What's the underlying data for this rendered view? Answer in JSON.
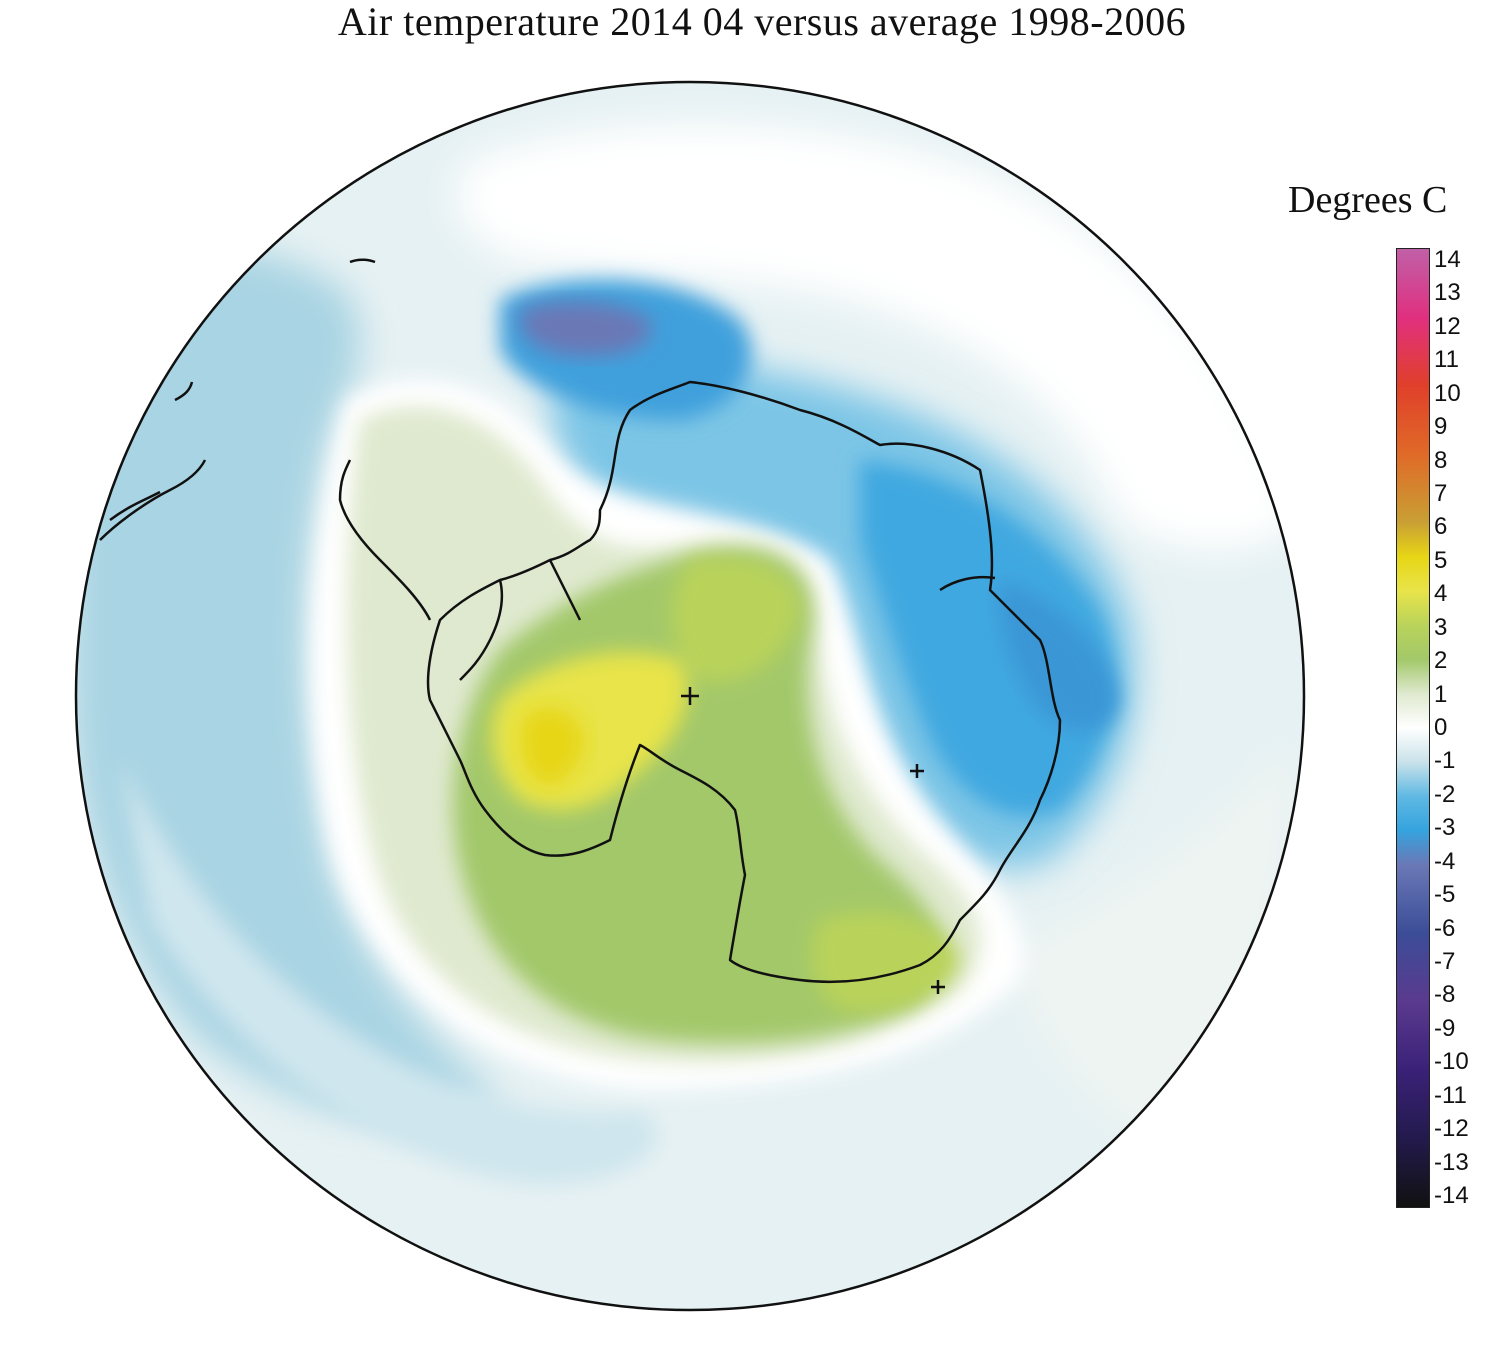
{
  "title": "Air temperature 2014 04 versus average 1998-2006",
  "legend": {
    "title": "Degrees C",
    "min": -14,
    "max": 14,
    "ticks": [
      "14",
      "13",
      "12",
      "11",
      "10",
      "9",
      "8",
      "7",
      "6",
      "5",
      "4",
      "3",
      "2",
      "1",
      "0",
      "-1",
      "-2",
      "-3",
      "-4",
      "-5",
      "-6",
      "-7",
      "-8",
      "-9",
      "-10",
      "-11",
      "-12",
      "-13",
      "-14"
    ],
    "colors": {
      "14": "#c060a8",
      "12": "#e0307f",
      "10": "#e0402a",
      "8": "#e06a28",
      "6": "#c9a034",
      "5": "#e7d616",
      "4": "#e8e44a",
      "3": "#b9d35a",
      "2": "#a3c86a",
      "1": "#dfe9cf",
      "0": "#ffffff",
      "-1": "#c9e2ea",
      "-2": "#5fb9e3",
      "-3": "#35a3de",
      "-4": "#6a78b6",
      "-6": "#3c4d98",
      "-8": "#5a3a8e",
      "-10": "#3a2178",
      "-12": "#231a4c",
      "-14": "#111111"
    }
  },
  "map": {
    "projection": "south-polar-stereographic",
    "region": "Antarctica",
    "markers": [
      "plus-marker",
      "plus-marker",
      "plus-marker"
    ]
  }
}
